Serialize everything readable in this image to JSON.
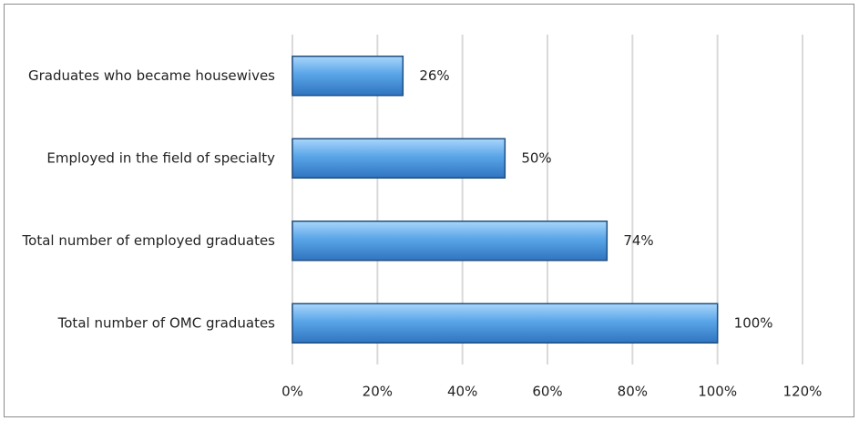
{
  "chart_data": {
    "type": "bar",
    "orientation": "horizontal",
    "categories": [
      "Graduates who became housewives",
      "Employed in the field of specialty",
      "Total number of employed graduates",
      "Total number of OMC graduates"
    ],
    "values": [
      26,
      50,
      74,
      100
    ],
    "value_labels": [
      "26%",
      "50%",
      "74%",
      "100%"
    ],
    "color": "#4a94dc",
    "xlim": [
      0,
      120
    ],
    "xticks": [
      {
        "value": 0,
        "label": "0%"
      },
      {
        "value": 20,
        "label": "20%"
      },
      {
        "value": 40,
        "label": "40%"
      },
      {
        "value": 60,
        "label": "60%"
      },
      {
        "value": 80,
        "label": "80%"
      },
      {
        "value": 100,
        "label": "100%"
      },
      {
        "value": 120,
        "label": "120%"
      }
    ],
    "grid": true
  }
}
